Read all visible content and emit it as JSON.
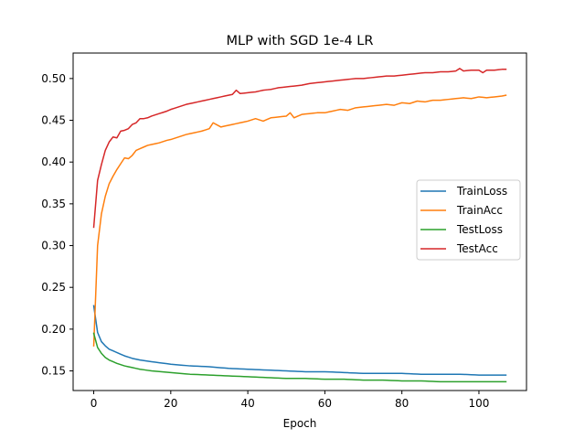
{
  "chart_data": {
    "type": "line",
    "title": "MLP with SGD 1e-4 LR",
    "xlabel": "Epoch",
    "ylabel": "",
    "xlim": [
      -5.35,
      112.35
    ],
    "ylim": [
      0.1265,
      0.5305
    ],
    "x_ticks": [
      0,
      20,
      40,
      60,
      80,
      100
    ],
    "x_tick_labels": [
      "0",
      "20",
      "40",
      "60",
      "80",
      "100"
    ],
    "y_ticks": [
      0.15,
      0.2,
      0.25,
      0.3,
      0.35,
      0.4,
      0.45,
      0.5
    ],
    "y_tick_labels": [
      "0.15",
      "0.20",
      "0.25",
      "0.30",
      "0.35",
      "0.40",
      "0.45",
      "0.50"
    ],
    "grid": false,
    "legend_position": "center-right",
    "x_range": [
      0,
      107
    ],
    "series": [
      {
        "name": "TrainLoss",
        "color": "#1f77b4",
        "x": [
          0,
          1,
          2,
          3,
          4,
          5,
          6,
          8,
          10,
          12,
          15,
          20,
          25,
          30,
          35,
          40,
          45,
          50,
          55,
          60,
          65,
          70,
          75,
          80,
          85,
          90,
          95,
          100,
          105,
          107
        ],
        "values": [
          0.228,
          0.196,
          0.185,
          0.18,
          0.176,
          0.174,
          0.172,
          0.168,
          0.165,
          0.163,
          0.161,
          0.158,
          0.156,
          0.155,
          0.153,
          0.152,
          0.151,
          0.15,
          0.149,
          0.149,
          0.148,
          0.147,
          0.147,
          0.147,
          0.146,
          0.146,
          0.146,
          0.145,
          0.145,
          0.145
        ]
      },
      {
        "name": "TrainAcc",
        "color": "#ff7f0e",
        "x": [
          0,
          1,
          2,
          3,
          4,
          5,
          6,
          7,
          8,
          9,
          10,
          11,
          12,
          13,
          14,
          15,
          17,
          19,
          20,
          22,
          24,
          26,
          28,
          30,
          31,
          33,
          35,
          37,
          39,
          40,
          42,
          44,
          46,
          48,
          50,
          51,
          52,
          54,
          56,
          58,
          60,
          62,
          64,
          66,
          68,
          70,
          72,
          74,
          76,
          78,
          80,
          82,
          84,
          86,
          88,
          90,
          92,
          94,
          96,
          98,
          100,
          102,
          104,
          106,
          107
        ],
        "values": [
          0.18,
          0.3,
          0.338,
          0.359,
          0.374,
          0.383,
          0.391,
          0.398,
          0.405,
          0.404,
          0.408,
          0.414,
          0.416,
          0.418,
          0.42,
          0.421,
          0.423,
          0.426,
          0.427,
          0.43,
          0.433,
          0.435,
          0.437,
          0.44,
          0.447,
          0.442,
          0.444,
          0.446,
          0.448,
          0.449,
          0.452,
          0.449,
          0.453,
          0.454,
          0.455,
          0.459,
          0.453,
          0.457,
          0.458,
          0.459,
          0.459,
          0.461,
          0.463,
          0.462,
          0.465,
          0.466,
          0.467,
          0.468,
          0.469,
          0.468,
          0.471,
          0.47,
          0.473,
          0.472,
          0.474,
          0.474,
          0.475,
          0.476,
          0.477,
          0.476,
          0.478,
          0.477,
          0.478,
          0.479,
          0.48
        ]
      },
      {
        "name": "TestLoss",
        "color": "#2ca02c",
        "x": [
          0,
          1,
          2,
          3,
          4,
          5,
          6,
          8,
          10,
          12,
          15,
          20,
          25,
          30,
          35,
          40,
          45,
          50,
          55,
          60,
          65,
          70,
          75,
          80,
          85,
          90,
          95,
          100,
          105,
          107
        ],
        "values": [
          0.195,
          0.178,
          0.171,
          0.166,
          0.163,
          0.161,
          0.159,
          0.156,
          0.154,
          0.152,
          0.15,
          0.148,
          0.146,
          0.145,
          0.144,
          0.143,
          0.142,
          0.141,
          0.141,
          0.14,
          0.14,
          0.139,
          0.139,
          0.138,
          0.138,
          0.137,
          0.137,
          0.137,
          0.137,
          0.137
        ]
      },
      {
        "name": "TestAcc",
        "color": "#d62728",
        "x": [
          0,
          1,
          2,
          3,
          4,
          5,
          6,
          7,
          8,
          9,
          10,
          11,
          12,
          13,
          14,
          15,
          17,
          19,
          20,
          22,
          24,
          26,
          28,
          30,
          32,
          34,
          36,
          37,
          38,
          40,
          42,
          44,
          46,
          48,
          50,
          52,
          54,
          56,
          58,
          60,
          62,
          64,
          66,
          68,
          70,
          72,
          74,
          76,
          78,
          80,
          82,
          84,
          86,
          88,
          90,
          92,
          94,
          95,
          96,
          98,
          100,
          101,
          102,
          104,
          106,
          107
        ],
        "values": [
          0.322,
          0.378,
          0.397,
          0.414,
          0.424,
          0.43,
          0.429,
          0.437,
          0.438,
          0.44,
          0.445,
          0.447,
          0.452,
          0.452,
          0.453,
          0.455,
          0.458,
          0.461,
          0.463,
          0.466,
          0.469,
          0.471,
          0.473,
          0.475,
          0.477,
          0.479,
          0.481,
          0.486,
          0.482,
          0.483,
          0.484,
          0.486,
          0.487,
          0.489,
          0.49,
          0.491,
          0.492,
          0.494,
          0.495,
          0.496,
          0.497,
          0.498,
          0.499,
          0.5,
          0.5,
          0.501,
          0.502,
          0.503,
          0.503,
          0.504,
          0.505,
          0.506,
          0.507,
          0.507,
          0.508,
          0.508,
          0.509,
          0.512,
          0.509,
          0.51,
          0.51,
          0.507,
          0.51,
          0.51,
          0.511,
          0.511
        ]
      }
    ]
  }
}
